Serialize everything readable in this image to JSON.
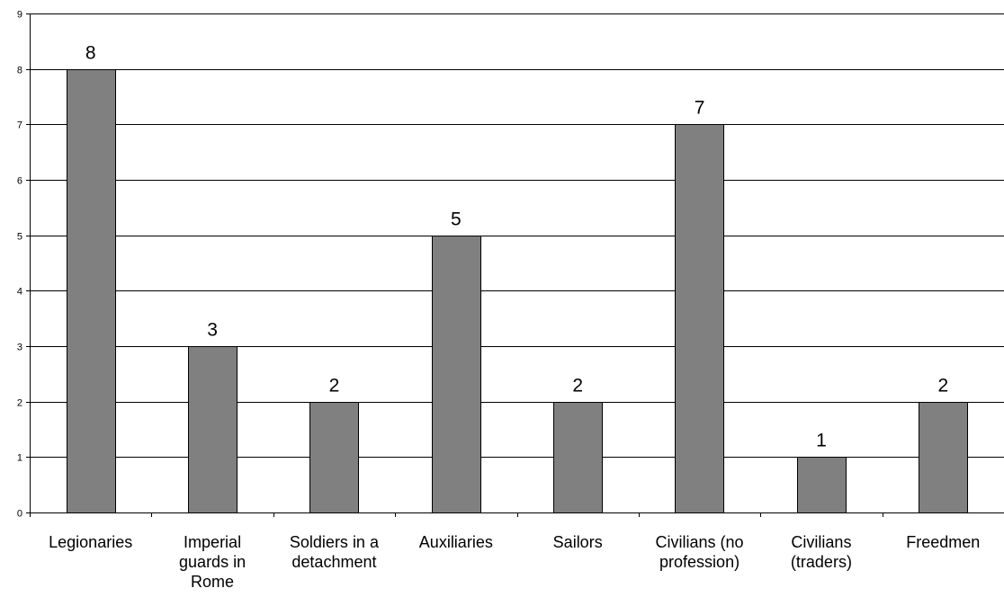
{
  "chart_data": {
    "type": "bar",
    "categories": [
      [
        "Legionaries"
      ],
      [
        "Imperial",
        "guards in",
        "Rome"
      ],
      [
        "Soldiers in a",
        "detachment"
      ],
      [
        "Auxiliaries"
      ],
      [
        "Sailors"
      ],
      [
        "Civilians (no",
        "profession)"
      ],
      [
        "Civilians",
        "(traders)"
      ],
      [
        "Freedmen"
      ]
    ],
    "values": [
      8,
      3,
      2,
      5,
      2,
      7,
      1,
      2
    ],
    "ylim": [
      0,
      9
    ],
    "yticks": [
      "0",
      "1",
      "2",
      "3",
      "4",
      "5",
      "6",
      "7",
      "8",
      "9"
    ],
    "data_labels": [
      "8",
      "3",
      "2",
      "5",
      "2",
      "7",
      "1",
      "2"
    ],
    "title": "",
    "xlabel": "",
    "ylabel": "",
    "grid": true,
    "legend": "none",
    "colors": {
      "bar": "#808080",
      "bar_border": "#000000",
      "gridline": "#000000",
      "axis": "#000000"
    }
  }
}
